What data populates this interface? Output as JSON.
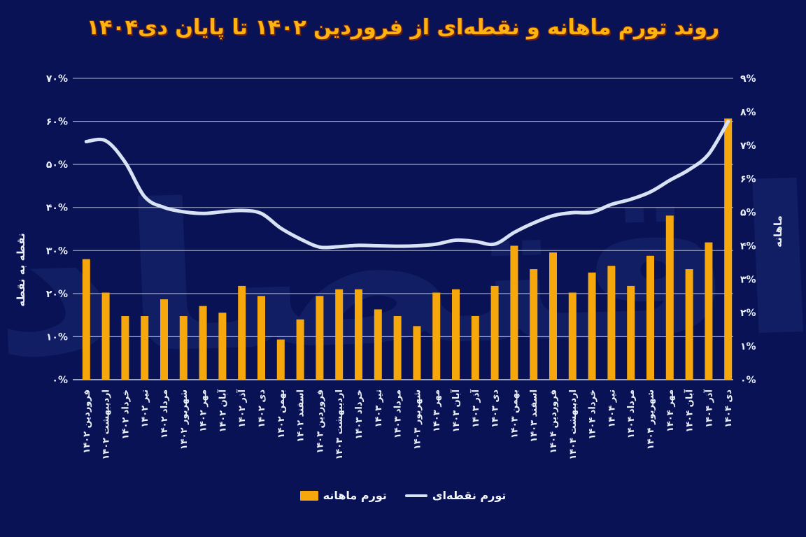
{
  "page": {
    "background": "#081254"
  },
  "title": {
    "text": "روند تورم ماهانه و نقطه‌ای از فروردین ۱۴۰۲ تا پایان دی۱۴۰۴",
    "color": "#FDB411"
  },
  "watermark": {
    "text": "اقتصاد"
  },
  "axes": {
    "left": {
      "title": "نقطه به نقطه",
      "range": [
        0,
        70
      ],
      "ticks": [
        {
          "label": "۰%",
          "value": 0
        },
        {
          "label": "۱۰%",
          "value": 10
        },
        {
          "label": "۲۰%",
          "value": 20
        },
        {
          "label": "۳۰%",
          "value": 30
        },
        {
          "label": "۴۰%",
          "value": 40
        },
        {
          "label": "۵۰%",
          "value": 50
        },
        {
          "label": "۶۰%",
          "value": 60
        },
        {
          "label": "۷۰%",
          "value": 70
        }
      ]
    },
    "right": {
      "title": "ماهانه",
      "range": [
        0,
        9
      ],
      "ticks": [
        {
          "label": "۰%",
          "value": 0
        },
        {
          "label": "۱%",
          "value": 1
        },
        {
          "label": "۲%",
          "value": 2
        },
        {
          "label": "۳%",
          "value": 3
        },
        {
          "label": "۴%",
          "value": 4
        },
        {
          "label": "۵%",
          "value": 5
        },
        {
          "label": "۶%",
          "value": 6
        },
        {
          "label": "۷%",
          "value": 7
        },
        {
          "label": "۸%",
          "value": 8
        },
        {
          "label": "۹%",
          "value": 9
        }
      ]
    }
  },
  "legend": [
    {
      "label": "تورم نقطه‌ای",
      "swatch": "line",
      "color": "#D8E2F5"
    },
    {
      "label": "تورم ماهانه",
      "swatch": "bar",
      "color": "#F5A70B"
    }
  ],
  "colors": {
    "background": "#081254",
    "bar": "#F5A70B",
    "line": "#D8E2F5",
    "grid": "#D9DFEE",
    "text": "#EAEFF9",
    "title": "#FDB411"
  },
  "chart_data": {
    "type": "bar+line",
    "title": "روند تورم ماهانه و نقطه‌ای از فروردین ۱۴۰۲ تا پایان دی۱۴۰۴",
    "grid": true,
    "left_axis": {
      "label": "نقطه به نقطه",
      "range": [
        0,
        70
      ],
      "unit": "%"
    },
    "right_axis": {
      "label": "ماهانه",
      "range": [
        0,
        9
      ],
      "unit": "%"
    },
    "categories": [
      "فروردین ۱۴۰۲",
      "اردیبهشت ۱۴۰۲",
      "خرداد ۱۴۰۲",
      "تیر ۱۴۰۲",
      "مرداد ۱۴۰۲",
      "شهریور ۱۴۰۲",
      "مهر ۱۴۰۲",
      "آبان ۱۴۰۲",
      "آذر ۱۴۰۲",
      "دی ۱۴۰۲",
      "بهمن ۱۴۰۲",
      "اسفند ۱۴۰۲",
      "فروردین ۱۴۰۳",
      "اردیبهشت ۱۴۰۳",
      "خرداد ۱۴۰۳",
      "تیر ۱۴۰۳",
      "مرداد ۱۴۰۳",
      "شهریور ۱۴۰۳",
      "مهر ۱۴۰۳",
      "آبان ۱۴۰۳",
      "آذر ۱۴۰۳",
      "دی ۱۴۰۳",
      "بهمن ۱۴۰۳",
      "اسفند ۱۴۰۳",
      "فروردین ۱۴۰۴",
      "اردیبهشت ۱۴۰۴",
      "خرداد ۱۴۰۴",
      "تیر ۱۴۰۴",
      "مرداد ۱۴۰۴",
      "شهریور ۱۴۰۴",
      "مهر ۱۴۰۴",
      "آبان ۱۴۰۴",
      "آذر ۱۴۰۴",
      "دی ۱۴۰۴"
    ],
    "series": [
      {
        "name": "تورم ماهانه",
        "type": "bar",
        "axis": "right",
        "unit": "%",
        "color": "#F5A70B",
        "values": [
          3.6,
          2.6,
          1.9,
          1.9,
          2.4,
          1.9,
          2.2,
          2.0,
          2.8,
          2.5,
          1.2,
          1.8,
          2.5,
          2.7,
          2.7,
          2.1,
          1.9,
          1.6,
          2.6,
          2.7,
          1.9,
          2.8,
          4.0,
          3.3,
          3.8,
          2.6,
          3.2,
          3.4,
          2.8,
          3.7,
          4.9,
          3.3,
          4.1,
          7.8
        ]
      },
      {
        "name": "تورم نقطه‌ای",
        "type": "line",
        "axis": "left",
        "unit": "%",
        "color": "#D8E2F5",
        "values": [
          55.3,
          55.5,
          50.5,
          42.5,
          40.0,
          39.0,
          38.6,
          39.0,
          39.3,
          38.6,
          35.2,
          32.7,
          30.8,
          30.9,
          31.2,
          31.1,
          31.0,
          31.1,
          31.5,
          32.4,
          32.1,
          31.5,
          34.2,
          36.4,
          38.1,
          38.8,
          38.9,
          40.7,
          41.9,
          43.6,
          46.3,
          48.8,
          52.4,
          60.0
        ]
      }
    ]
  }
}
